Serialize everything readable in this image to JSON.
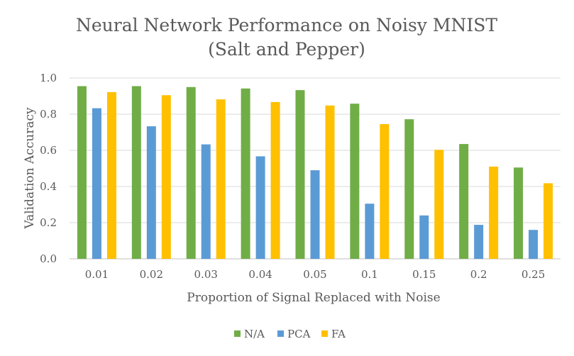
{
  "chart_data": {
    "type": "bar",
    "title_lines": [
      "Neural Network Performance on Noisy MNIST",
      "(Salt and Pepper)"
    ],
    "xlabel": "Proportion of Signal Replaced with Noise",
    "ylabel": "Validation Accuracy",
    "categories": [
      "0.01",
      "0.02",
      "0.03",
      "0.04",
      "0.05",
      "0.1",
      "0.15",
      "0.2",
      "0.25"
    ],
    "ylim": [
      0,
      1.0
    ],
    "yticks": [
      "0.0",
      "0.2",
      "0.4",
      "0.6",
      "0.8",
      "1.0"
    ],
    "grid": true,
    "legend_position": "bottom",
    "series": [
      {
        "name": "N/A",
        "color": "#70AD47",
        "values": [
          0.955,
          0.955,
          0.95,
          0.942,
          0.933,
          0.858,
          0.772,
          0.635,
          0.505
        ]
      },
      {
        "name": "PCA",
        "color": "#5B9BD5",
        "values": [
          0.833,
          0.733,
          0.633,
          0.567,
          0.49,
          0.305,
          0.24,
          0.188,
          0.16
        ]
      },
      {
        "name": "FA",
        "color": "#FFC000",
        "values": [
          0.922,
          0.905,
          0.882,
          0.867,
          0.848,
          0.745,
          0.603,
          0.51,
          0.418
        ]
      }
    ]
  }
}
